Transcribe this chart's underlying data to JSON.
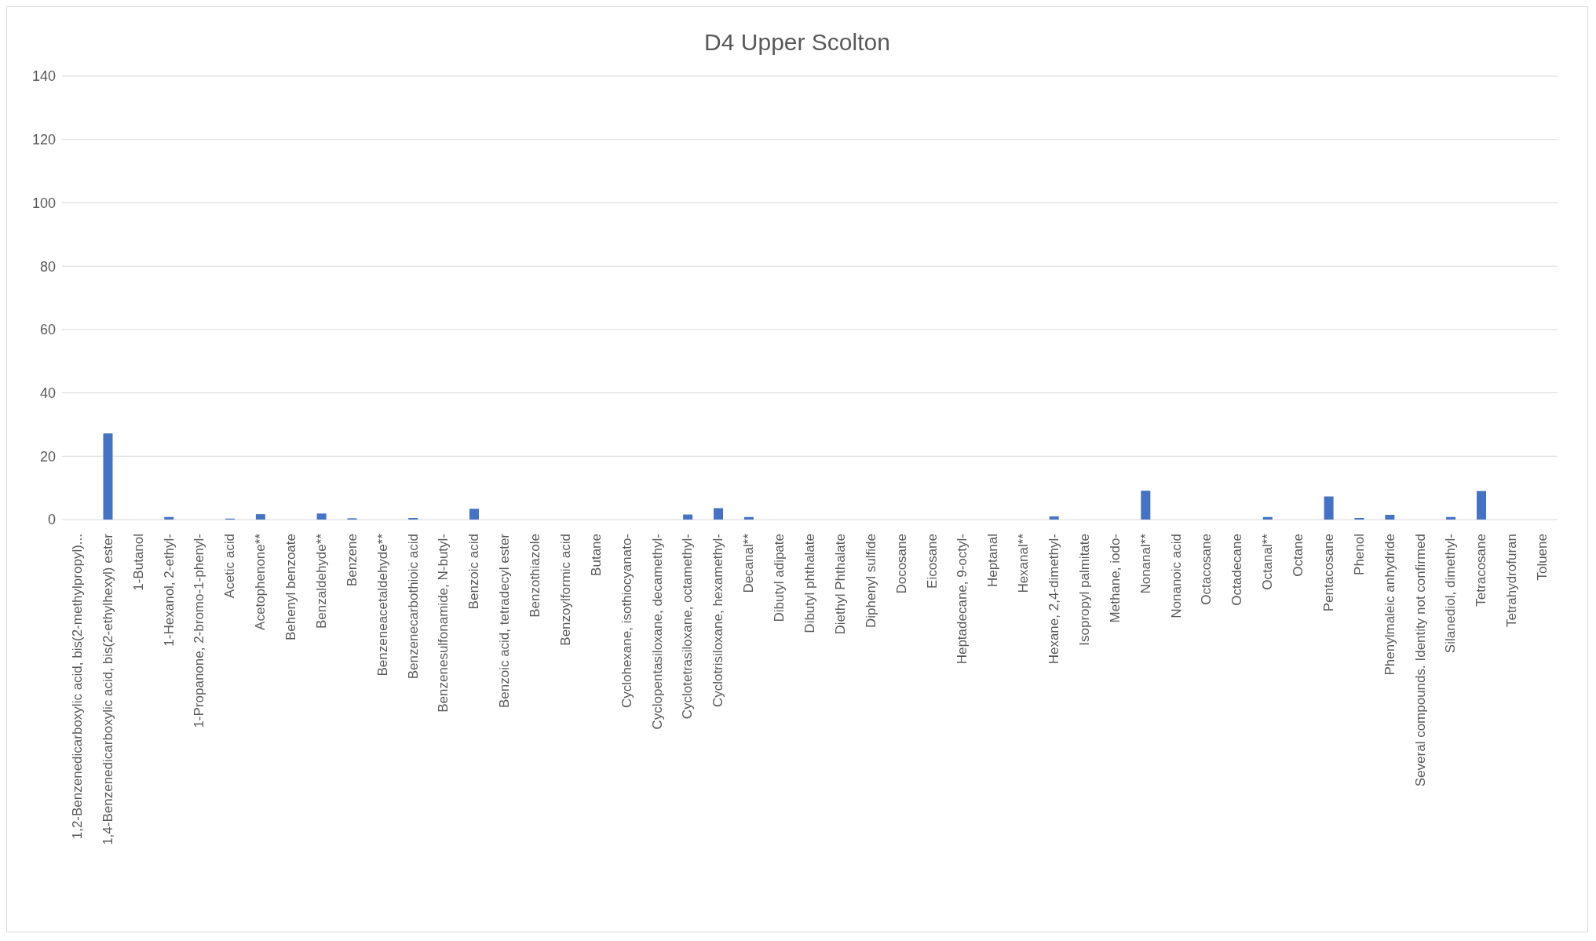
{
  "chart_data": {
    "type": "bar",
    "title": "D4 Upper Scolton",
    "categories": [
      "1,2-Benzenedicarboxylic acid, bis(2-methylpropyl)...",
      "1,4-Benzenedicarboxylic acid, bis(2-ethylhexyl) ester",
      "1-Butanol",
      "1-Hexanol, 2-ethyl-",
      "1-Propanone, 2-bromo-1-phenyl-",
      "Acetic acid",
      "Acetophenone**",
      "Behenyl benzoate",
      "Benzaldehyde**",
      "Benzene",
      "Benzeneacetaldehyde**",
      "Benzenecarbothioic acid",
      "Benzenesulfonamide, N-butyl-",
      "Benzoic acid",
      "Benzoic acid, tetradecyl ester",
      "Benzothiazole",
      "Benzoylformic acid",
      "Butane",
      "Cyclohexane, isothiocyanato-",
      "Cyclopentasiloxane, decamethyl-",
      "Cyclotetrasiloxane, octamethyl-",
      "Cyclotrisiloxane, hexamethyl-",
      "Decanal**",
      "Dibutyl adipate",
      "Dibutyl phthalate",
      "Diethyl Phthalate",
      "Diphenyl sulfide",
      "Docosane",
      "Eicosane",
      "Heptadecane, 9-octyl-",
      "Heptanal",
      "Hexanal**",
      "Hexane, 2,4-dimethyl-",
      "Isopropyl palmitate",
      "Methane, iodo-",
      "Nonanal**",
      "Nonanoic acid",
      "Octacosane",
      "Octadecane",
      "Octanal**",
      "Octane",
      "Pentacosane",
      "Phenol",
      "Phenylmaleic anhydride",
      "Several compounds. Identity not confirmed",
      "Silanediol, dimethyl-",
      "Tetracosane",
      "Tetrahydrofuran",
      "Toluene"
    ],
    "values": [
      0,
      27.2,
      0,
      0.8,
      0,
      0.3,
      1.7,
      0,
      1.9,
      0.4,
      0,
      0.5,
      0,
      3.4,
      0,
      0,
      0,
      0,
      0,
      0,
      1.6,
      3.6,
      0.8,
      0,
      0,
      0,
      0,
      0,
      0,
      0,
      0,
      0,
      1.0,
      0,
      0,
      9.1,
      0,
      0,
      0,
      0.8,
      0,
      7.3,
      0.5,
      1.5,
      0,
      0.8,
      9.0,
      0,
      0
    ],
    "color": "#4472c4",
    "ylim": [
      0,
      140
    ],
    "yticks": [
      0,
      20,
      40,
      60,
      80,
      100,
      120,
      140
    ],
    "grid": "y",
    "legend": false
  }
}
